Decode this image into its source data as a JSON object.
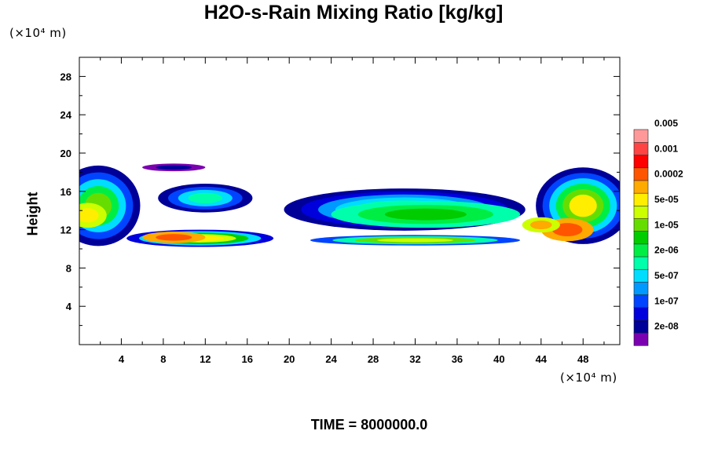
{
  "chart_data": {
    "type": "heatmap",
    "title": "H2O-s-Rain Mixing Ratio [kg/kg]",
    "ylabel": "Height",
    "x_unit": "(×10⁴ m)",
    "y_unit": "(×10⁴ m)",
    "footer": "TIME = 8000000.0",
    "xlim": [
      0,
      51.5
    ],
    "ylim": [
      0,
      30
    ],
    "x_ticks": [
      4,
      8,
      12,
      16,
      20,
      24,
      28,
      32,
      36,
      40,
      44,
      48
    ],
    "y_ticks": [
      4,
      8,
      12,
      16,
      20,
      24,
      28
    ],
    "colorbar": {
      "colors": [
        "#7b00b0",
        "#000099",
        "#0000dd",
        "#0044ff",
        "#0099ff",
        "#00ddff",
        "#00ffaa",
        "#00ee44",
        "#00cc00",
        "#66dd00",
        "#ccff00",
        "#ffee00",
        "#ffaa00",
        "#ff5500",
        "#ff0000",
        "#ff4444",
        "#ff9999"
      ],
      "labels": [
        "2e-08",
        "1e-07",
        "5e-07",
        "2e-06",
        "1e-05",
        "5e-05",
        "0.0002",
        "0.001",
        "0.005"
      ]
    },
    "fields": [
      {
        "region": "lower-left layer",
        "x": [
          5,
          18
        ],
        "y": [
          10.5,
          12.2
        ],
        "peak": "0.001"
      },
      {
        "region": "middle lower layer",
        "x": [
          22,
          42
        ],
        "y": [
          10.5,
          11.5
        ],
        "peak": "5e-05"
      },
      {
        "region": "central upper cloud",
        "x": [
          20,
          43
        ],
        "y": [
          11.5,
          16.5
        ],
        "peak": "5e-05"
      },
      {
        "region": "left edge cloud",
        "x": [
          0,
          6
        ],
        "y": [
          10.5,
          19
        ],
        "peak": "5e-05"
      },
      {
        "region": "upper-left cloud",
        "x": [
          7,
          17
        ],
        "y": [
          14,
          19
        ],
        "peak": "1e-05"
      },
      {
        "region": "right edge cloud",
        "x": [
          42,
          51.5
        ],
        "y": [
          10.5,
          20
        ],
        "peak": "0.001"
      }
    ]
  }
}
